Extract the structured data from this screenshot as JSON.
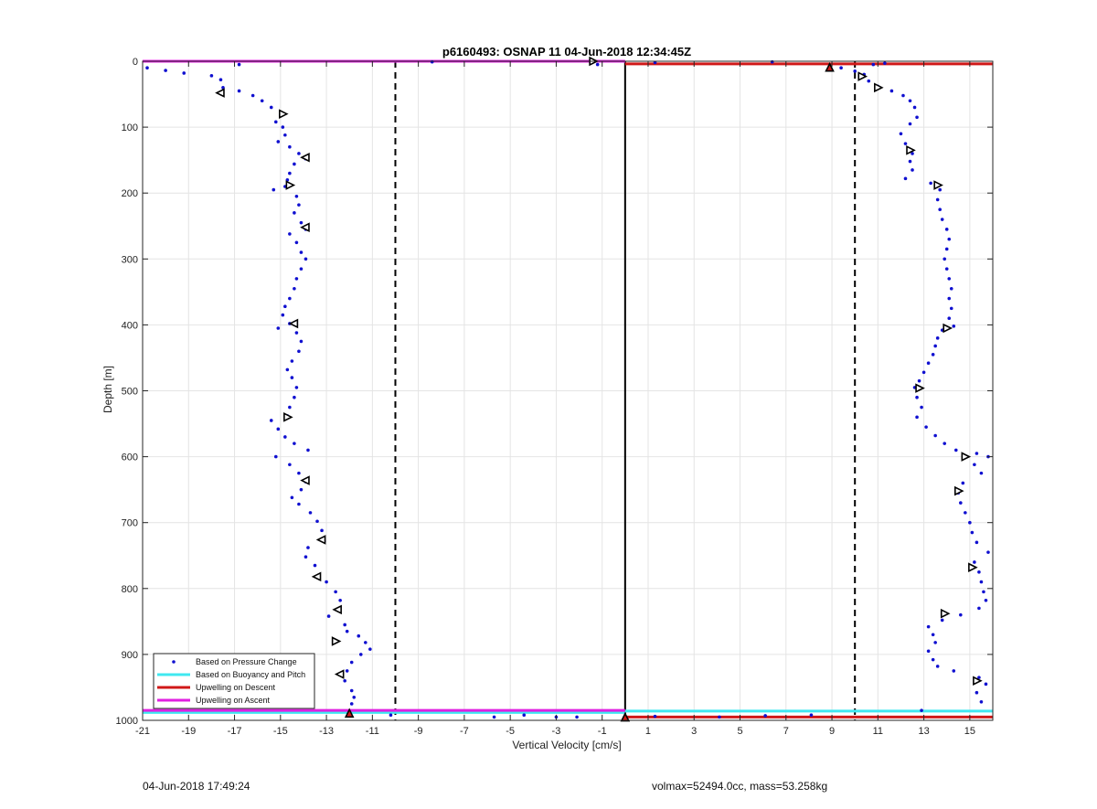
{
  "footer": {
    "timestamp": "04-Jun-2018 17:49:24",
    "params": "volmax=52494.0cc, mass=53.258kg"
  },
  "colors": {
    "pressure_points": "#1010d0",
    "buoyancy_pitch": "#40e8f0",
    "upwelling_descent": "#d01818",
    "upwelling_ascent": "#e020e0",
    "grid": "#e4e4e4"
  },
  "chart_data": {
    "type": "scatter",
    "title": "p6160493: OSNAP 11 04-Jun-2018 12:34:45Z",
    "xlabel": "Vertical Velocity [cm/s]",
    "ylabel": "Depth [m]",
    "xlim": [
      -21,
      16
    ],
    "ylim": [
      1000,
      0
    ],
    "y_reversed": true,
    "grid": true,
    "x_ticks": [
      -21,
      -19,
      -17,
      -15,
      -13,
      -11,
      -9,
      -7,
      -5,
      -3,
      -1,
      1,
      3,
      5,
      7,
      9,
      11,
      13,
      15
    ],
    "y_ticks": [
      0,
      100,
      200,
      300,
      400,
      500,
      600,
      700,
      800,
      900,
      1000
    ],
    "legend_position": "bottom-left",
    "legend": [
      "Based on Pressure Change",
      "Based on Buoyancy and Pitch",
      "Upwelling on Descent",
      "Upwelling on Ascent"
    ],
    "reference_lines": {
      "dashed_x": [
        -10,
        10
      ],
      "solid_x": [
        0
      ]
    },
    "series": [
      {
        "name": "Based on Pressure Change",
        "style": "dots",
        "points": [
          [
            -20.8,
            10
          ],
          [
            -20,
            14
          ],
          [
            -19.2,
            18
          ],
          [
            -18,
            22
          ],
          [
            -17.6,
            28
          ],
          [
            -16.8,
            5
          ],
          [
            -17.5,
            40
          ],
          [
            -16.8,
            45
          ],
          [
            -16.2,
            52
          ],
          [
            -15.8,
            60
          ],
          [
            -15.4,
            70
          ],
          [
            -15,
            82
          ],
          [
            -15.2,
            92
          ],
          [
            -14.9,
            100
          ],
          [
            -14.8,
            112
          ],
          [
            -15.1,
            122
          ],
          [
            -14.6,
            130
          ],
          [
            -14.2,
            140
          ],
          [
            -13.9,
            148
          ],
          [
            -14.4,
            156
          ],
          [
            -14.6,
            170
          ],
          [
            -14.7,
            180
          ],
          [
            -14.8,
            190
          ],
          [
            -15.3,
            195
          ],
          [
            -14.3,
            205
          ],
          [
            -14.2,
            218
          ],
          [
            -14.4,
            230
          ],
          [
            -14.1,
            245
          ],
          [
            -13.9,
            255
          ],
          [
            -14.6,
            262
          ],
          [
            -14.3,
            275
          ],
          [
            -14.1,
            290
          ],
          [
            -13.9,
            300
          ],
          [
            -14.1,
            315
          ],
          [
            -14.3,
            330
          ],
          [
            -14.4,
            345
          ],
          [
            -14.6,
            360
          ],
          [
            -14.8,
            372
          ],
          [
            -14.9,
            385
          ],
          [
            -14.6,
            398
          ],
          [
            -15.1,
            405
          ],
          [
            -14.3,
            412
          ],
          [
            -14.1,
            425
          ],
          [
            -14.2,
            440
          ],
          [
            -14.5,
            455
          ],
          [
            -14.7,
            468
          ],
          [
            -14.5,
            480
          ],
          [
            -14.3,
            495
          ],
          [
            -14.4,
            510
          ],
          [
            -14.6,
            525
          ],
          [
            -14.7,
            538
          ],
          [
            -15.4,
            545
          ],
          [
            -15.1,
            558
          ],
          [
            -14.8,
            570
          ],
          [
            -14.4,
            580
          ],
          [
            -13.8,
            590
          ],
          [
            -15.2,
            600
          ],
          [
            -14.6,
            612
          ],
          [
            -14.2,
            625
          ],
          [
            -13.9,
            638
          ],
          [
            -14.1,
            650
          ],
          [
            -14.5,
            662
          ],
          [
            -14.2,
            672
          ],
          [
            -13.7,
            685
          ],
          [
            -13.4,
            698
          ],
          [
            -13.2,
            712
          ],
          [
            -13.1,
            728
          ],
          [
            -13.8,
            738
          ],
          [
            -13.9,
            752
          ],
          [
            -13.5,
            765
          ],
          [
            -13.4,
            782
          ],
          [
            -13,
            790
          ],
          [
            -12.6,
            805
          ],
          [
            -12.4,
            818
          ],
          [
            -12.5,
            832
          ],
          [
            -12.9,
            842
          ],
          [
            -12.2,
            855
          ],
          [
            -12.1,
            865
          ],
          [
            -11.6,
            872
          ],
          [
            -11.3,
            882
          ],
          [
            -11.1,
            892
          ],
          [
            -11.5,
            900
          ],
          [
            -11.9,
            912
          ],
          [
            -12.1,
            925
          ],
          [
            -12.2,
            940
          ],
          [
            -11.9,
            955
          ],
          [
            -11.8,
            965
          ],
          [
            -11.9,
            975
          ],
          [
            -12,
            990
          ],
          [
            -10.2,
            992
          ],
          [
            -8.4,
            1
          ],
          [
            -1.2,
            5
          ],
          [
            1.3,
            2
          ],
          [
            6.4,
            1
          ],
          [
            8.9,
            8
          ],
          [
            9.4,
            10
          ],
          [
            10,
            15
          ],
          [
            10.4,
            20
          ],
          [
            10.8,
            5
          ],
          [
            11.3,
            3
          ],
          [
            10.6,
            30
          ],
          [
            11,
            38
          ],
          [
            11.6,
            45
          ],
          [
            12.1,
            52
          ],
          [
            12.4,
            60
          ],
          [
            12.6,
            70
          ],
          [
            12.7,
            85
          ],
          [
            12.4,
            95
          ],
          [
            12,
            110
          ],
          [
            12.2,
            125
          ],
          [
            12.5,
            140
          ],
          [
            12.4,
            152
          ],
          [
            12.5,
            165
          ],
          [
            12.2,
            178
          ],
          [
            13.3,
            185
          ],
          [
            13.7,
            195
          ],
          [
            13.6,
            210
          ],
          [
            13.7,
            225
          ],
          [
            13.8,
            240
          ],
          [
            14,
            255
          ],
          [
            14.1,
            270
          ],
          [
            14,
            285
          ],
          [
            13.9,
            300
          ],
          [
            14,
            315
          ],
          [
            14.1,
            330
          ],
          [
            14.2,
            345
          ],
          [
            14.1,
            360
          ],
          [
            14.2,
            375
          ],
          [
            14.1,
            390
          ],
          [
            14.3,
            402
          ],
          [
            13.8,
            408
          ],
          [
            13.6,
            420
          ],
          [
            13.5,
            432
          ],
          [
            13.4,
            445
          ],
          [
            13.2,
            458
          ],
          [
            13,
            472
          ],
          [
            12.8,
            485
          ],
          [
            12.6,
            495
          ],
          [
            12.7,
            510
          ],
          [
            12.9,
            525
          ],
          [
            12.7,
            540
          ],
          [
            13.1,
            555
          ],
          [
            13.5,
            568
          ],
          [
            13.9,
            580
          ],
          [
            14.4,
            590
          ],
          [
            15.3,
            595
          ],
          [
            15.8,
            600
          ],
          [
            15.2,
            612
          ],
          [
            15.5,
            625
          ],
          [
            14.7,
            640
          ],
          [
            14.5,
            655
          ],
          [
            14.6,
            670
          ],
          [
            14.8,
            685
          ],
          [
            15,
            700
          ],
          [
            15.1,
            715
          ],
          [
            15.3,
            730
          ],
          [
            15.8,
            745
          ],
          [
            15.2,
            760
          ],
          [
            15.4,
            775
          ],
          [
            15.5,
            790
          ],
          [
            15.6,
            805
          ],
          [
            15.7,
            818
          ],
          [
            15.4,
            830
          ],
          [
            14.6,
            840
          ],
          [
            13.8,
            848
          ],
          [
            13.2,
            858
          ],
          [
            13.4,
            870
          ],
          [
            13.5,
            882
          ],
          [
            13.2,
            895
          ],
          [
            13.4,
            908
          ],
          [
            13.6,
            918
          ],
          [
            14.3,
            925
          ],
          [
            15.4,
            935
          ],
          [
            15.7,
            945
          ],
          [
            15.3,
            958
          ],
          [
            15.5,
            972
          ],
          [
            12.9,
            985
          ],
          [
            8.1,
            992
          ],
          [
            6.1,
            993
          ],
          [
            4.1,
            995
          ],
          [
            1.3,
            994
          ],
          [
            -2.1,
            995
          ],
          [
            -3,
            995
          ],
          [
            -4.4,
            992
          ],
          [
            -5.7,
            995
          ]
        ]
      },
      {
        "name": "triangle markers",
        "style": "triangles",
        "points": [
          [
            -17.6,
            48,
            "left"
          ],
          [
            -14.9,
            80,
            "right"
          ],
          [
            -13.9,
            146,
            "left"
          ],
          [
            -14.6,
            188,
            "right"
          ],
          [
            -13.9,
            252,
            "left"
          ],
          [
            -14.4,
            398,
            "left"
          ],
          [
            -14.7,
            540,
            "right"
          ],
          [
            -13.9,
            636,
            "left"
          ],
          [
            -13.2,
            726,
            "left"
          ],
          [
            -13.4,
            782,
            "left"
          ],
          [
            -12.5,
            832,
            "left"
          ],
          [
            -12.6,
            880,
            "right"
          ],
          [
            -12.4,
            930,
            "left"
          ],
          [
            -12,
            990,
            "up-red"
          ],
          [
            -1.4,
            0,
            "right"
          ],
          [
            8.9,
            10,
            "up-red"
          ],
          [
            10.3,
            23,
            "right"
          ],
          [
            11,
            40,
            "right"
          ],
          [
            12.4,
            135,
            "right"
          ],
          [
            13.6,
            188,
            "right"
          ],
          [
            14,
            405,
            "right"
          ],
          [
            12.8,
            496,
            "right"
          ],
          [
            14.8,
            600,
            "right"
          ],
          [
            14.5,
            652,
            "right"
          ],
          [
            15.1,
            768,
            "right"
          ],
          [
            13.9,
            838,
            "right"
          ],
          [
            15.3,
            940,
            "right"
          ],
          [
            0,
            996,
            "up-red"
          ]
        ]
      },
      {
        "name": "Based on Buoyancy and Pitch",
        "style": "line",
        "segments": [
          [
            [
              -21,
              988
            ],
            [
              0,
              988
            ]
          ],
          [
            [
              0,
              986
            ],
            [
              16,
              986
            ]
          ]
        ]
      },
      {
        "name": "Upwelling on Descent",
        "style": "line",
        "segments": [
          [
            [
              0,
              4
            ],
            [
              16,
              4
            ]
          ],
          [
            [
              0,
              995
            ],
            [
              16,
              995
            ]
          ]
        ]
      },
      {
        "name": "Upwelling on Ascent",
        "style": "line",
        "segments": [
          [
            [
              -21,
              0
            ],
            [
              0,
              0
            ]
          ],
          [
            [
              -21,
              985
            ],
            [
              0,
              985
            ]
          ]
        ]
      }
    ]
  }
}
